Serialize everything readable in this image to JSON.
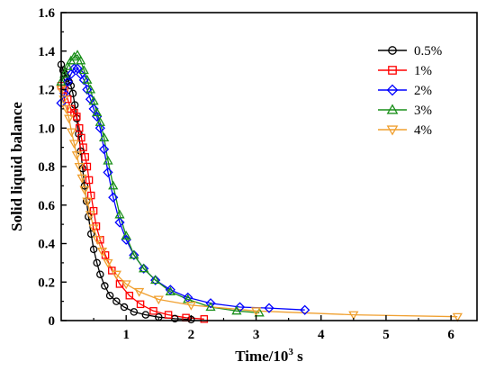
{
  "chart_data": {
    "type": "line",
    "xlabel": "Time/10",
    "xlabel_sup": "3",
    "xlabel_unit": " s",
    "ylabel": "Solid liquid balance",
    "xlim": [
      0,
      6.4
    ],
    "ylim": [
      0,
      1.6
    ],
    "xticks": [
      "1",
      "2",
      "3",
      "4",
      "5",
      "6"
    ],
    "yticks": [
      "0",
      "0.2",
      "0.4",
      "0.6",
      "0.8",
      "1.0",
      "1.2",
      "1.4",
      "1.6"
    ],
    "ytick_values": [
      0,
      0.2,
      0.4,
      0.6,
      0.8,
      1.0,
      1.2,
      1.4,
      1.6
    ],
    "xtick_values": [
      1,
      2,
      3,
      4,
      5,
      6
    ],
    "grid": false,
    "legend_position": "top-right",
    "series": [
      {
        "name": "0.5%",
        "color": "#000000",
        "marker": "circle",
        "x": [
          0.0,
          0.03,
          0.06,
          0.09,
          0.12,
          0.15,
          0.18,
          0.21,
          0.24,
          0.27,
          0.3,
          0.33,
          0.36,
          0.39,
          0.42,
          0.46,
          0.5,
          0.55,
          0.6,
          0.67,
          0.75,
          0.85,
          0.97,
          1.12,
          1.3,
          1.5,
          1.75,
          2.0
        ],
        "y": [
          1.33,
          1.3,
          1.28,
          1.26,
          1.24,
          1.22,
          1.18,
          1.12,
          1.05,
          0.97,
          0.88,
          0.79,
          0.7,
          0.62,
          0.54,
          0.45,
          0.37,
          0.3,
          0.24,
          0.18,
          0.13,
          0.1,
          0.07,
          0.045,
          0.03,
          0.018,
          0.01,
          0.005
        ]
      },
      {
        "name": "1%",
        "color": "#ff0000",
        "marker": "square",
        "x": [
          0.0,
          0.05,
          0.1,
          0.15,
          0.2,
          0.24,
          0.28,
          0.31,
          0.34,
          0.37,
          0.4,
          0.43,
          0.46,
          0.5,
          0.54,
          0.6,
          0.68,
          0.78,
          0.9,
          1.05,
          1.22,
          1.42,
          1.65,
          1.92,
          2.2
        ],
        "y": [
          1.22,
          1.2,
          1.15,
          1.1,
          1.08,
          1.06,
          1.0,
          0.95,
          0.9,
          0.85,
          0.8,
          0.73,
          0.65,
          0.57,
          0.49,
          0.42,
          0.34,
          0.26,
          0.19,
          0.13,
          0.085,
          0.05,
          0.03,
          0.015,
          0.008
        ]
      },
      {
        "name": "2%",
        "color": "#0000ff",
        "marker": "diamond",
        "x": [
          0.0,
          0.05,
          0.1,
          0.15,
          0.2,
          0.25,
          0.3,
          0.35,
          0.4,
          0.45,
          0.5,
          0.55,
          0.6,
          0.66,
          0.72,
          0.8,
          0.9,
          1.0,
          1.12,
          1.27,
          1.45,
          1.68,
          1.95,
          2.3,
          2.75,
          3.2,
          3.75
        ],
        "y": [
          1.13,
          1.18,
          1.24,
          1.28,
          1.31,
          1.31,
          1.28,
          1.25,
          1.2,
          1.15,
          1.1,
          1.06,
          1.0,
          0.89,
          0.77,
          0.64,
          0.51,
          0.42,
          0.34,
          0.27,
          0.21,
          0.16,
          0.12,
          0.09,
          0.07,
          0.065,
          0.055
        ]
      },
      {
        "name": "3%",
        "color": "#1a8f1a",
        "marker": "triangle-up",
        "x": [
          0.0,
          0.05,
          0.1,
          0.15,
          0.2,
          0.25,
          0.3,
          0.35,
          0.4,
          0.45,
          0.5,
          0.55,
          0.6,
          0.66,
          0.72,
          0.8,
          0.9,
          1.0,
          1.12,
          1.27,
          1.45,
          1.68,
          1.95,
          2.3,
          2.7,
          3.05
        ],
        "y": [
          1.24,
          1.28,
          1.32,
          1.35,
          1.37,
          1.38,
          1.35,
          1.3,
          1.25,
          1.2,
          1.14,
          1.08,
          1.03,
          0.95,
          0.83,
          0.7,
          0.55,
          0.44,
          0.34,
          0.27,
          0.21,
          0.15,
          0.11,
          0.07,
          0.05,
          0.04
        ]
      },
      {
        "name": "4%",
        "color": "#f0a030",
        "marker": "triangle-down",
        "x": [
          0.0,
          0.04,
          0.08,
          0.12,
          0.16,
          0.2,
          0.24,
          0.28,
          0.32,
          0.36,
          0.4,
          0.45,
          0.5,
          0.56,
          0.63,
          0.72,
          0.85,
          1.0,
          1.2,
          1.5,
          2.0,
          3.0,
          4.5,
          6.1
        ],
        "y": [
          1.2,
          1.15,
          1.1,
          1.05,
          0.98,
          0.92,
          0.86,
          0.8,
          0.74,
          0.68,
          0.62,
          0.55,
          0.48,
          0.42,
          0.36,
          0.3,
          0.24,
          0.19,
          0.15,
          0.11,
          0.08,
          0.05,
          0.03,
          0.02
        ]
      }
    ]
  }
}
